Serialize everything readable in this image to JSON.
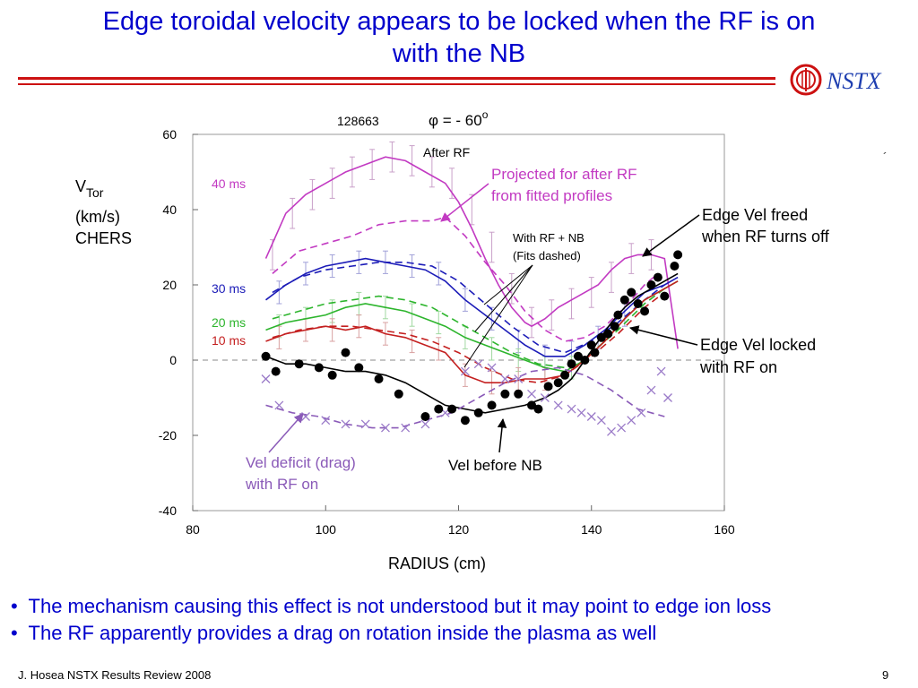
{
  "slide": {
    "title_line1": "Edge toroidal velocity appears to be locked when the RF is on",
    "title_line2": "with the NB",
    "logo_text": "NSTX",
    "bullets": [
      "The mechanism causing this effect is not understood but it may point to edge ion loss",
      "The RF apparently provides a drag on rotation inside the plasma as well"
    ],
    "bullet_char": "•",
    "footer": "J. Hosea  NSTX Results Review 2008",
    "page_number": "9",
    "stray_mark": "´"
  },
  "colors": {
    "title": "#0000cc",
    "rule": "#cc1111",
    "magenta": "#c23ac2",
    "blue": "#1c1cb8",
    "green": "#2db52d",
    "red": "#c42020",
    "purple": "#8a5ab8",
    "black": "#000000"
  },
  "chart_data": {
    "type": "line",
    "shot_label": "128663",
    "phi_label": "φ = - 60",
    "phi_superscript": "o",
    "ylabel_lines": [
      "V",
      "(km/s)",
      "CHERS"
    ],
    "ylabel_sub": "Tor",
    "xlabel": "RADIUS (cm)",
    "xlim": [
      80,
      160
    ],
    "ylim": [
      -40,
      60
    ],
    "x_ticks": [
      "80",
      "100",
      "120",
      "140",
      "160"
    ],
    "y_ticks": [
      "60",
      "40",
      "20",
      "0",
      "-20",
      "-40"
    ],
    "zero_line": "dashed",
    "grid": false,
    "series_labels": {
      "t40": "40 ms",
      "t30": "30 ms",
      "t20": "20 ms",
      "t10": "10 ms"
    },
    "annotations": {
      "after_rf": "After RF",
      "projected_line1": "Projected for after RF",
      "projected_line2": "from fitted profiles",
      "with_rf_line1": "With RF + NB",
      "with_rf_line2": "(Fits dashed)",
      "freed_line1": "Edge Vel freed",
      "freed_line2": "when RF turns off",
      "locked_line1": "Edge Vel locked",
      "locked_line2": "with RF on",
      "deficit_line1": "Vel deficit (drag)",
      "deficit_line2": "with RF on",
      "before_nb": "Vel before NB"
    },
    "series": [
      {
        "name": "40 ms",
        "color": "#c23ac2",
        "style": "solid",
        "x": [
          91,
          94,
          97,
          100,
          103,
          106,
          109,
          112,
          115,
          118,
          120,
          122,
          124,
          126,
          128,
          130,
          131,
          133,
          135,
          137,
          139,
          141,
          143,
          145,
          147,
          149,
          151,
          152,
          153
        ],
        "y": [
          27,
          39,
          44,
          47,
          50,
          52,
          54,
          53,
          50,
          47,
          42,
          35,
          27,
          20,
          14,
          10,
          9,
          11,
          14,
          16,
          18,
          20,
          24,
          27,
          28,
          28,
          27,
          15,
          3
        ]
      },
      {
        "name": "40 ms fit",
        "color": "#c23ac2",
        "style": "dashed",
        "x": [
          92,
          96,
          100,
          104,
          108,
          112,
          116,
          118,
          121,
          124,
          127,
          130,
          133,
          136,
          139,
          142,
          145,
          148,
          150
        ],
        "y": [
          23,
          29,
          31,
          33,
          36,
          37,
          37,
          38,
          33,
          26,
          20,
          13,
          8,
          5,
          6,
          9,
          14,
          20,
          23
        ]
      },
      {
        "name": "30 ms",
        "color": "#1c1cb8",
        "style": "solid",
        "x": [
          91,
          94,
          97,
          100,
          103,
          106,
          109,
          112,
          115,
          118,
          121,
          124,
          127,
          130,
          133,
          136,
          139,
          142,
          145,
          148,
          151,
          153
        ],
        "y": [
          16,
          20,
          23,
          25,
          26,
          27,
          26,
          25,
          24,
          21,
          16,
          12,
          8,
          4,
          1,
          1,
          4,
          8,
          13,
          18,
          20,
          22
        ]
      },
      {
        "name": "30 ms fit",
        "color": "#1c1cb8",
        "style": "dashed",
        "x": [
          92,
          96,
          100,
          104,
          108,
          112,
          116,
          120,
          124,
          128,
          132,
          136,
          140,
          144,
          148,
          151
        ],
        "y": [
          18,
          22,
          24,
          25,
          26,
          26,
          25,
          21,
          15,
          9,
          4,
          2,
          5,
          10,
          16,
          20
        ]
      },
      {
        "name": "20 ms",
        "color": "#2db52d",
        "style": "solid",
        "x": [
          91,
          94,
          97,
          100,
          103,
          106,
          109,
          112,
          115,
          118,
          121,
          124,
          127,
          130,
          133,
          136,
          139,
          142,
          145,
          148,
          151,
          153
        ],
        "y": [
          8,
          10,
          11,
          12,
          14,
          15,
          14,
          13,
          11,
          9,
          6,
          4,
          2,
          0,
          -2,
          -3,
          0,
          5,
          11,
          16,
          19,
          21
        ]
      },
      {
        "name": "20 ms fit",
        "color": "#2db52d",
        "style": "dashed",
        "x": [
          92,
          96,
          100,
          104,
          108,
          112,
          116,
          120,
          124,
          128,
          132,
          136,
          140,
          144,
          148,
          151
        ],
        "y": [
          11,
          13,
          15,
          16,
          17,
          16,
          14,
          10,
          6,
          2,
          -1,
          -2,
          2,
          8,
          15,
          19
        ]
      },
      {
        "name": "10 ms",
        "color": "#c42020",
        "style": "solid",
        "x": [
          91,
          94,
          97,
          100,
          103,
          106,
          109,
          112,
          115,
          118,
          121,
          124,
          127,
          130,
          133,
          136,
          139,
          142,
          145,
          148,
          151,
          153
        ],
        "y": [
          5,
          7,
          8,
          9,
          8,
          9,
          7,
          6,
          4,
          2,
          -4,
          -6,
          -6,
          -5,
          -5,
          -4,
          0,
          5,
          11,
          16,
          19,
          21
        ]
      },
      {
        "name": "10 ms fit",
        "color": "#c42020",
        "style": "dashed",
        "x": [
          92,
          96,
          100,
          104,
          108,
          112,
          116,
          120,
          124,
          128,
          132,
          136,
          140,
          144,
          148,
          151
        ],
        "y": [
          6,
          8,
          9,
          9,
          8,
          7,
          5,
          2,
          -2,
          -5,
          -6,
          -4,
          1,
          7,
          14,
          18
        ]
      },
      {
        "name": "Vel before NB fit",
        "color": "#000000",
        "style": "solid",
        "x": [
          91,
          94,
          97,
          100,
          103,
          106,
          109,
          112,
          115,
          118,
          121,
          124,
          127,
          130,
          133,
          135,
          137,
          139,
          141,
          143,
          145,
          147,
          149,
          151,
          153
        ],
        "y": [
          1,
          -1,
          -1,
          -2,
          -3,
          -3,
          -4,
          -6,
          -9,
          -12,
          -13,
          -14,
          -13,
          -12,
          -10,
          -8,
          -5,
          0,
          5,
          10,
          14,
          17,
          19,
          21,
          23
        ]
      },
      {
        "name": "Vel deficit fit",
        "color": "#8a5ab8",
        "style": "dashed",
        "x": [
          91,
          95,
          99,
          103,
          107,
          111,
          115,
          119,
          123,
          127,
          131,
          135,
          139,
          143,
          147,
          151
        ],
        "y": [
          -12,
          -14,
          -15,
          -17,
          -18,
          -18,
          -16,
          -14,
          -10,
          -6,
          -3,
          -2,
          -4,
          -8,
          -13,
          -15
        ]
      }
    ],
    "black_points": {
      "x": [
        91,
        92.5,
        96,
        99,
        101,
        103,
        105,
        108,
        111,
        115,
        117,
        119,
        121,
        123,
        125,
        127,
        129,
        131,
        132,
        133.5,
        135,
        136,
        137,
        138,
        139,
        140,
        140.5,
        141.5,
        142.5,
        143.5,
        144,
        145,
        146,
        147,
        148,
        149,
        150,
        151,
        152.5,
        153
      ],
      "y": [
        1,
        -3,
        -1,
        -2,
        -4,
        2,
        -2,
        -5,
        -9,
        -15,
        -13,
        -13,
        -16,
        -14,
        -12,
        -9,
        -9,
        -12,
        -13,
        -7,
        -6,
        -4,
        -1,
        1,
        0,
        4,
        2,
        6,
        7,
        9,
        12,
        16,
        18,
        15,
        13,
        20,
        22,
        17,
        25,
        28
      ]
    },
    "purple_crosses": {
      "x": [
        91,
        93,
        97,
        100,
        103,
        106,
        109,
        112,
        115,
        118,
        121,
        123,
        125,
        127,
        129,
        131,
        133,
        135,
        137,
        138.5,
        140,
        141.5,
        143,
        144.5,
        146,
        147.5,
        149,
        150.5,
        151.5
      ],
      "y": [
        -5,
        -12,
        -15,
        -16,
        -17,
        -17,
        -18,
        -18,
        -17,
        -14,
        -3,
        -1,
        -2,
        -5,
        -5,
        -9,
        -10,
        -12,
        -13,
        -14,
        -15,
        -16,
        -19,
        -18,
        -16,
        -14,
        -8,
        -3,
        -10
      ]
    },
    "magenta_errorbars": {
      "x": [
        92,
        95,
        98,
        101,
        104,
        107,
        110,
        113,
        116,
        119,
        122,
        125,
        128,
        131,
        134,
        137,
        140,
        143,
        146,
        149
      ],
      "y": [
        28,
        39,
        44,
        47,
        50,
        52,
        54,
        53,
        50,
        47,
        40,
        30,
        19,
        10,
        12,
        15,
        18,
        22,
        27,
        28
      ]
    },
    "blue_errorbars": {
      "x": [
        93,
        97,
        101,
        105,
        109,
        113,
        117,
        121,
        125,
        129,
        133,
        137,
        141,
        145
      ],
      "y": [
        18,
        23,
        25,
        26,
        26,
        25,
        23,
        16,
        11,
        5,
        1,
        2,
        6,
        12
      ]
    },
    "green_errorbars": {
      "x": [
        93,
        97,
        101,
        105,
        109,
        113,
        117,
        121,
        125,
        129,
        133,
        137
      ],
      "y": [
        9,
        11,
        13,
        15,
        14,
        12,
        10,
        6,
        3,
        0,
        -2,
        -2
      ]
    },
    "red_errorbars": {
      "x": [
        93,
        97,
        101,
        105,
        109,
        113,
        117,
        121,
        125,
        129,
        133
      ],
      "y": [
        6,
        8,
        8,
        9,
        7,
        5,
        3,
        -4,
        -6,
        -5,
        -5
      ]
    }
  }
}
